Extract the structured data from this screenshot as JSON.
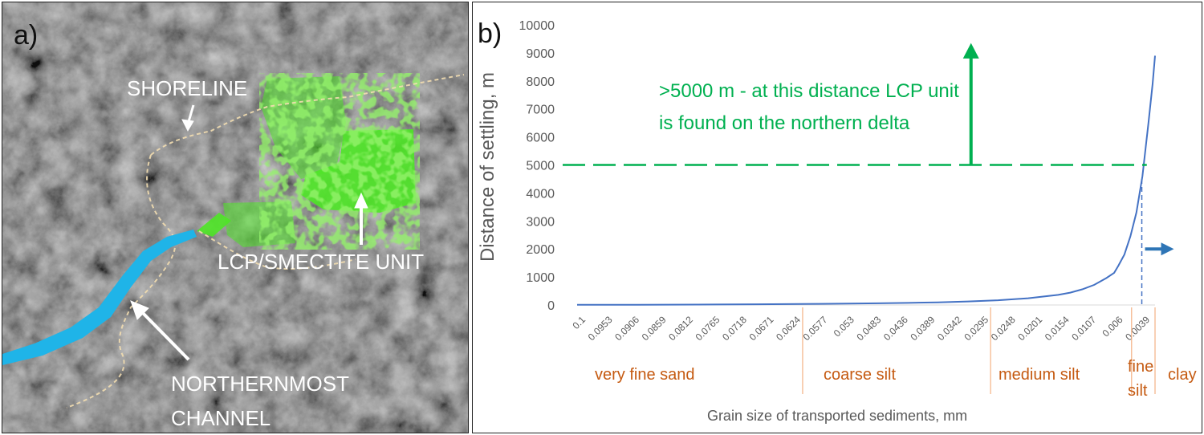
{
  "panel_a": {
    "letter": "a)",
    "labels": {
      "shoreline": "SHORELINE",
      "unit": "LCP/SMECTITE UNIT",
      "channel_line1": "NORTHERNMOST",
      "channel_line2": "CHANNEL"
    },
    "colors": {
      "terrain": "#6f6f6f",
      "unit": "#4ee626",
      "channel": "#1fb4e8",
      "shoreline": "#f2ddb0"
    }
  },
  "panel_b": {
    "letter": "b)",
    "annotation_line1": ">5000 m - at this distance LCP unit",
    "annotation_line2": "is found on the northern delta",
    "classes": [
      "very fine sand",
      "coarse silt",
      "medium silt",
      "fine",
      "silt",
      "clay"
    ],
    "colors": {
      "line": "#4472c4",
      "annotation": "#00b050",
      "arrow_right": "#2e75b6",
      "classes": "#c55a11",
      "text": "#595959"
    }
  },
  "chart_data": {
    "type": "line",
    "title": "",
    "xlabel": "Grain size of transported sediments, mm",
    "ylabel": "Distance of settling, m",
    "ylim": [
      0,
      10000
    ],
    "yticks": [
      0,
      1000,
      2000,
      3000,
      4000,
      5000,
      6000,
      7000,
      8000,
      9000,
      10000
    ],
    "x_ticks": [
      "0.1",
      "0.0953",
      "0.0906",
      "0.0859",
      "0.0812",
      "0.0765",
      "0.0718",
      "0.0671",
      "0.0624",
      "0.0577",
      "0.053",
      "0.0483",
      "0.0436",
      "0.0389",
      "0.0342",
      "0.0295",
      "0.0248",
      "0.0201",
      "0.0154",
      "0.0107",
      "0.006",
      "0.0039"
    ],
    "x_range": [
      0.1,
      0.0039
    ],
    "grid": false,
    "legend": "none",
    "threshold": 5000,
    "series": [
      {
        "x": [
          0.1,
          0.09,
          0.08,
          0.07,
          0.06,
          0.05,
          0.045,
          0.04,
          0.035,
          0.03,
          0.025,
          0.02,
          0.018,
          0.016,
          0.014,
          0.012,
          0.0107,
          0.01,
          0.009,
          0.008,
          0.007,
          0.006,
          0.005,
          0.0043,
          0.0039
        ],
        "y": [
          5,
          10,
          15,
          25,
          40,
          60,
          75,
          95,
          125,
          170,
          240,
          360,
          440,
          560,
          720,
          960,
          1150,
          1400,
          1800,
          2450,
          3300,
          4600,
          6500,
          7900,
          8900
        ]
      }
    ]
  }
}
